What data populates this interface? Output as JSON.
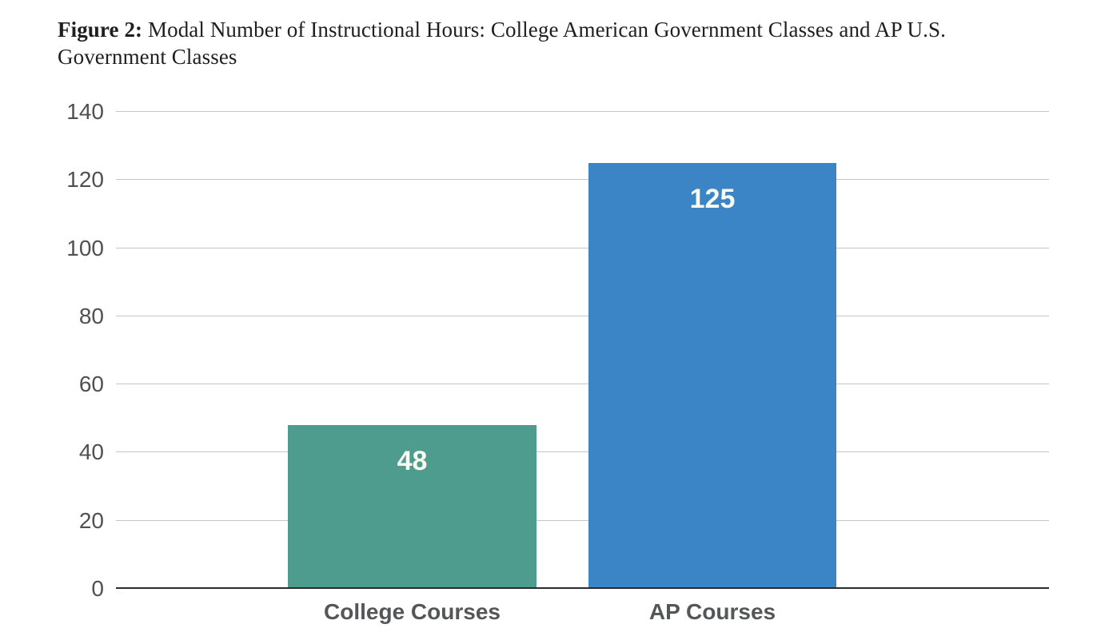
{
  "figure": {
    "title_prefix": "Figure 2:",
    "title_rest": " Modal Number of Instructional Hours: College American Government Classes and AP U.S. Government Classes"
  },
  "chart_data": {
    "type": "bar",
    "title": "Figure 2: Modal Number of Instructional Hours: College American Government Classes and AP U.S. Government Classes",
    "categories": [
      "College Courses",
      "AP Courses"
    ],
    "values": [
      48,
      125
    ],
    "value_labels": [
      "48",
      "125"
    ],
    "bar_colors": [
      "#4d9c8e",
      "#3b85c7"
    ],
    "xlabel": "",
    "ylabel": "",
    "ylim": [
      0,
      140
    ],
    "yticks": [
      0,
      20,
      40,
      60,
      80,
      100,
      120,
      140
    ],
    "grid": true,
    "legend_position": "none",
    "colors": {
      "gridline": "#c4c7ca",
      "axis_line": "#2b2b2b",
      "tick_label": "#4f5052",
      "category_label": "#555657",
      "value_label": "#fbfbf1",
      "background": "#ffffff"
    }
  }
}
